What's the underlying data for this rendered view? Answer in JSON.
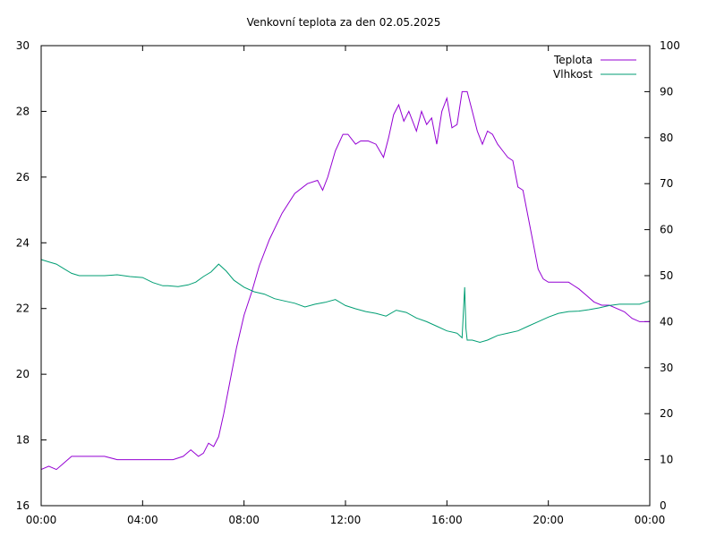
{
  "chart_data": {
    "type": "line",
    "title": "Venkovní teplota za den 02.05.2025",
    "x_ticks": [
      "00:00",
      "04:00",
      "08:00",
      "12:00",
      "16:00",
      "20:00",
      "00:00"
    ],
    "x_range_hours": [
      0,
      24
    ],
    "y_left_range": [
      16,
      30
    ],
    "y_left_ticks": [
      "16",
      "18",
      "20",
      "22",
      "24",
      "26",
      "28",
      "30"
    ],
    "y_right_range": [
      0,
      100
    ],
    "y_right_ticks": [
      "0",
      "10",
      "20",
      "30",
      "40",
      "50",
      "60",
      "70",
      "80",
      "90",
      "100"
    ],
    "grid": false,
    "legend_position": "top-right",
    "series": [
      {
        "name": "Teplota",
        "axis": "left",
        "color": "#9400d3",
        "x": [
          0,
          0.3,
          0.6,
          0.9,
          1.2,
          1.5,
          1.8,
          2.0,
          2.5,
          3.0,
          3.3,
          3.6,
          4.0,
          4.4,
          4.8,
          5.2,
          5.6,
          5.9,
          6.2,
          6.4,
          6.6,
          6.8,
          7.0,
          7.2,
          7.5,
          7.7,
          8.0,
          8.3,
          8.6,
          9.0,
          9.5,
          10.0,
          10.5,
          10.9,
          11.1,
          11.3,
          11.6,
          11.9,
          12.1,
          12.4,
          12.6,
          12.9,
          13.2,
          13.5,
          13.7,
          13.9,
          14.1,
          14.3,
          14.5,
          14.8,
          15.0,
          15.2,
          15.4,
          15.6,
          15.8,
          16.0,
          16.2,
          16.4,
          16.6,
          16.8,
          17.0,
          17.2,
          17.4,
          17.6,
          17.8,
          18.0,
          18.2,
          18.4,
          18.6,
          18.8,
          19.0,
          19.2,
          19.4,
          19.6,
          19.8,
          20.0,
          20.2,
          20.4,
          20.6,
          20.8,
          21.0,
          21.2,
          21.5,
          21.8,
          22.1,
          22.4,
          22.7,
          23.0,
          23.3,
          23.6,
          23.8,
          24.0
        ],
        "values": [
          17.1,
          17.2,
          17.1,
          17.3,
          17.5,
          17.5,
          17.5,
          17.5,
          17.5,
          17.4,
          17.4,
          17.4,
          17.4,
          17.4,
          17.4,
          17.4,
          17.5,
          17.7,
          17.5,
          17.6,
          17.9,
          17.8,
          18.1,
          18.8,
          20.0,
          20.8,
          21.8,
          22.5,
          23.3,
          24.1,
          24.9,
          25.5,
          25.8,
          25.9,
          25.6,
          26.0,
          26.8,
          27.3,
          27.3,
          27.0,
          27.1,
          27.1,
          27.0,
          26.6,
          27.2,
          27.9,
          28.2,
          27.7,
          28.0,
          27.4,
          28.0,
          27.6,
          27.8,
          27.0,
          28.0,
          28.4,
          27.5,
          27.6,
          28.6,
          28.6,
          28.0,
          27.4,
          27.0,
          27.4,
          27.3,
          27.0,
          26.8,
          26.6,
          26.5,
          25.7,
          25.6,
          24.8,
          24.0,
          23.2,
          22.9,
          22.8,
          22.8,
          22.8,
          22.8,
          22.8,
          22.7,
          22.6,
          22.4,
          22.2,
          22.1,
          22.1,
          22.0,
          21.9,
          21.7,
          21.6,
          21.6,
          21.6
        ]
      },
      {
        "name": "Vlhkost",
        "axis": "right",
        "color": "#009e73",
        "x": [
          0,
          0.3,
          0.6,
          0.9,
          1.2,
          1.5,
          1.8,
          2.1,
          2.5,
          3.0,
          3.5,
          4.0,
          4.4,
          4.8,
          5.0,
          5.4,
          5.8,
          6.1,
          6.4,
          6.7,
          7.0,
          7.3,
          7.6,
          8.0,
          8.4,
          8.8,
          9.2,
          9.6,
          10.0,
          10.4,
          10.8,
          11.2,
          11.6,
          12.0,
          12.4,
          12.8,
          13.2,
          13.6,
          14.0,
          14.4,
          14.8,
          15.2,
          15.6,
          16.0,
          16.4,
          16.6,
          16.7,
          16.75,
          16.8,
          17.0,
          17.3,
          17.6,
          18.0,
          18.4,
          18.8,
          19.2,
          19.6,
          20.0,
          20.4,
          20.8,
          21.2,
          21.6,
          22.0,
          22.4,
          22.8,
          23.2,
          23.6,
          24.0
        ],
        "values": [
          53.5,
          53.0,
          52.5,
          51.5,
          50.5,
          50.0,
          50.0,
          50.0,
          50.0,
          50.2,
          49.8,
          49.6,
          48.5,
          47.8,
          47.8,
          47.6,
          48.0,
          48.6,
          49.8,
          50.8,
          52.5,
          51.0,
          49.0,
          47.5,
          46.5,
          46.0,
          45.0,
          44.5,
          44.0,
          43.2,
          43.8,
          44.2,
          44.8,
          43.5,
          42.8,
          42.2,
          41.8,
          41.2,
          42.5,
          42.0,
          40.8,
          40.0,
          39.0,
          38.0,
          37.5,
          36.5,
          47.5,
          38.5,
          36.0,
          36.0,
          35.5,
          36.0,
          37.0,
          37.5,
          38.0,
          39.0,
          40.0,
          41.0,
          41.8,
          42.2,
          42.3,
          42.6,
          43.0,
          43.5,
          43.8,
          43.8,
          43.8,
          44.5
        ]
      }
    ]
  }
}
